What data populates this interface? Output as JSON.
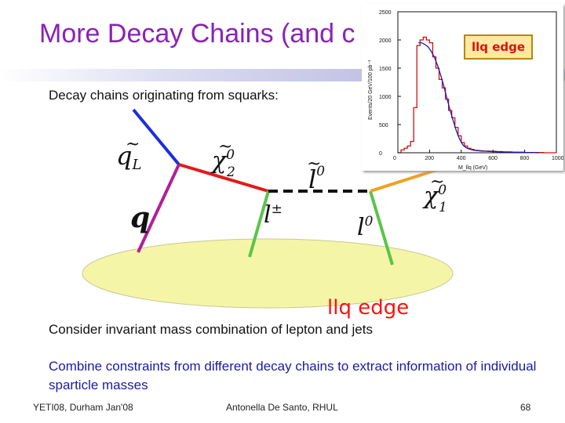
{
  "slide": {
    "title": "More Decay Chains (and c",
    "subtitle": "Decay chains originating from squarks:",
    "edge_label_big": "llq edge",
    "body_text_1": "Consider invariant mass combination of lepton and jets",
    "body_text_2": "Combine constraints from different decay chains to extract information of individual sparticle masses",
    "footer_left": "YETI08, Durham Jan'08",
    "footer_center": "Antonella De Santo, RHUL",
    "page_number": "68"
  },
  "diagram": {
    "labels": {
      "qL": "q",
      "qL_sub": "L",
      "chi2": "χ",
      "chi2_sup": "0",
      "chi2_sub": "2",
      "slepton": "l",
      "slepton_sup": "0",
      "chi1": "χ",
      "chi1_sup": "0",
      "chi1_sub": "1",
      "quark": "q",
      "lepton_pm": "l",
      "lepton_pm_sup": "±",
      "lepton0": "l",
      "lepton0_sup": "0"
    },
    "colors": {
      "squark_line": "#1a2ee0",
      "neutralino2_line": "#e21a1a",
      "quark_line": "#b0209a",
      "lepton_lines": "#5ac44a",
      "slepton_line": "#111111",
      "neutralino1_line": "#f2a020",
      "detector_ellipse": "#f5f5a8"
    }
  },
  "inset_plot": {
    "edge_badge": "llq edge",
    "ylabel": "Events/20 GeV/100 pb⁻¹",
    "xlabel": "M_llq (GeV)",
    "x_ticks": [
      "0",
      "200",
      "400",
      "600",
      "800",
      "1000"
    ],
    "y_ticks": [
      "0",
      "500",
      "1000",
      "1500",
      "2000",
      "2500"
    ]
  },
  "chart_data": {
    "type": "bar",
    "title": "",
    "xlabel": "M_llq (GeV)",
    "ylabel": "Events/20 GeV/100 pb⁻¹",
    "xlim": [
      0,
      1000
    ],
    "ylim": [
      0,
      2500
    ],
    "bin_width": 20,
    "x": [
      10,
      30,
      50,
      70,
      90,
      110,
      130,
      150,
      170,
      190,
      210,
      230,
      250,
      270,
      290,
      310,
      330,
      350,
      370,
      390,
      410,
      430,
      450,
      470,
      490,
      510,
      530,
      550,
      570,
      590,
      610,
      630,
      650,
      670,
      690,
      710,
      730,
      750,
      770,
      790,
      810,
      830,
      850,
      870,
      890,
      910,
      930,
      950,
      970,
      990
    ],
    "values": [
      0,
      50,
      80,
      120,
      200,
      800,
      1900,
      2000,
      2050,
      2000,
      1950,
      1700,
      1500,
      1300,
      1150,
      950,
      750,
      620,
      450,
      300,
      180,
      120,
      80,
      60,
      45,
      40,
      35,
      30,
      30,
      25,
      25,
      20,
      20,
      15,
      15,
      15,
      10,
      10,
      10,
      10,
      5,
      5,
      5,
      5,
      5,
      5,
      0,
      0,
      0,
      0
    ],
    "series": [
      {
        "name": "",
        "style": "histogram",
        "color": "#d01010"
      },
      {
        "name": "",
        "style": "fit",
        "color": "#1a1ab0"
      }
    ],
    "fit_values": [
      0,
      0,
      0,
      0,
      0,
      0,
      1950,
      1950,
      1920,
      1880,
      1800,
      1700,
      1550,
      1380,
      1180,
      960,
      750,
      560,
      380,
      240,
      140,
      90,
      65,
      50,
      40,
      35,
      30,
      28,
      25,
      22,
      20,
      18,
      16,
      14,
      12,
      10,
      9,
      8,
      7,
      6,
      5,
      4,
      3,
      2,
      1,
      0,
      0,
      0,
      0,
      0
    ]
  }
}
